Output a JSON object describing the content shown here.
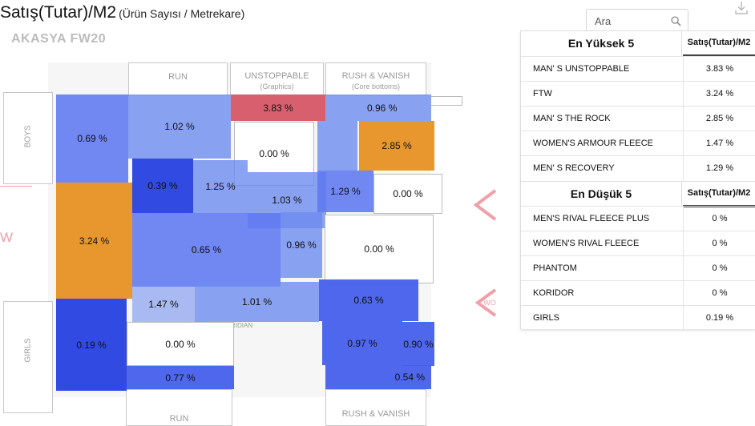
{
  "header": {
    "title": "Satış(Tutar)/M2",
    "subtitle": "(Ürün Sayısı / Metrekare)",
    "store_name": "AKASYA FW20"
  },
  "search": {
    "placeholder": "Ara",
    "value": ""
  },
  "icons": {
    "search": "search-icon",
    "download": "download-icon"
  },
  "colors": {
    "high": "#e8962e",
    "top": "#d8606e",
    "blue": "#4a63eb",
    "light_blue": "#8fa2f0"
  },
  "map": {
    "zone_labels": {
      "run_top": "RUN",
      "unstoppable": "UNSTOPPABLE",
      "unstoppable_sub": "(Graphics)",
      "rush_top": "RUSH & VANISH",
      "rush_top_sub": "(Core bottoms)",
      "boys": "BOYS",
      "girls": "GIRLS",
      "run_bottom": "RUN",
      "rush_bottom": "RUSH & VANISH",
      "ridian": "RIDIAN",
      "left_arrow_text": "W",
      "right_arrow_text": "WO"
    },
    "cells": {
      "c1": "0.69 %",
      "c2": "1.02 %",
      "c3": "3.83 %",
      "c4": "0.96 %",
      "c5": "0.00 %",
      "c6": "2.85 %",
      "c7": "3.24 %",
      "c8": "0.39 %",
      "c9": "1.25 %",
      "c10": "1.03 %",
      "c11": "1.29 %",
      "c12": "0.00 %",
      "c13": "0.65 %",
      "c14": "0.96 %",
      "c15": "0.00 %",
      "c16": "1.47 %",
      "c17": "1.01 %",
      "c18": "0.63 %",
      "c19": "0.19 %",
      "c20": "0.00 %",
      "c21": "0.97 %",
      "c22": "0.90 %",
      "c23": "0.77 %",
      "c24": "0.54 %"
    }
  },
  "top5": {
    "title": "En Yüksek 5",
    "col": "Satış(Tutar)/M2",
    "rows": [
      {
        "name": "MAN' S UNSTOPPABLE",
        "value": "3.83 %"
      },
      {
        "name": "FTW",
        "value": "3.24 %"
      },
      {
        "name": "MAN' S THE ROCK",
        "value": "2.85 %"
      },
      {
        "name": "WOMEN'S ARMOUR FLEECE",
        "value": "1.47 %"
      },
      {
        "name": "MEN' S RECOVERY",
        "value": "1.29 %"
      }
    ]
  },
  "bottom5": {
    "title": "En Düşük 5",
    "col": "Satış(Tutar)/M2",
    "rows": [
      {
        "name": "MEN'S RIVAL FLEECE PLUS",
        "value": "0 %"
      },
      {
        "name": "WOMEN'S RIVAL FLEECE",
        "value": "0 %"
      },
      {
        "name": "PHANTOM",
        "value": "0 %"
      },
      {
        "name": "KORIDOR",
        "value": "0 %"
      },
      {
        "name": "GIRLS",
        "value": "0.19 %"
      }
    ]
  }
}
